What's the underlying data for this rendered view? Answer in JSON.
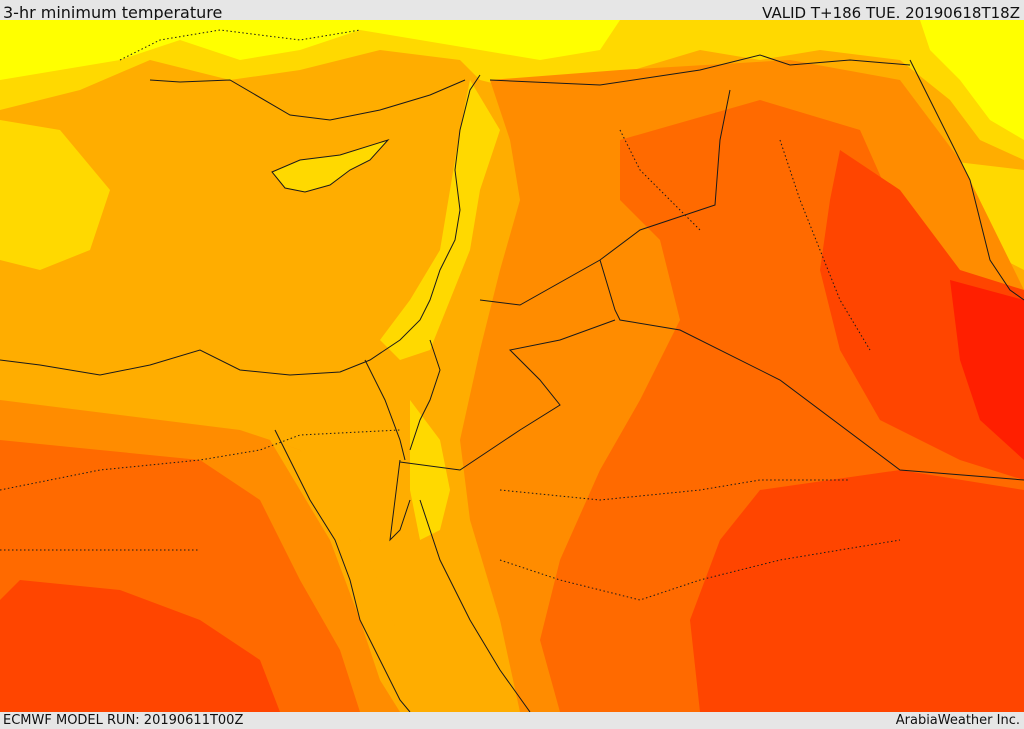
{
  "header": {
    "title": "3-hr minimum temperature",
    "valid": "VALID T+186 TUE. 20190618T18Z"
  },
  "footer": {
    "model_run": "ECMWF MODEL RUN: 20190611T00Z",
    "credit": "ArabiaWeather Inc."
  },
  "map": {
    "palette": {
      "pale_yellow": "#ffff00",
      "yellow": "#ffd900",
      "light_orange": "#ffad00",
      "orange": "#ff8c00",
      "dark_orange": "#ff6a00",
      "red_orange": "#ff4500",
      "red": "#ff1f00"
    }
  }
}
